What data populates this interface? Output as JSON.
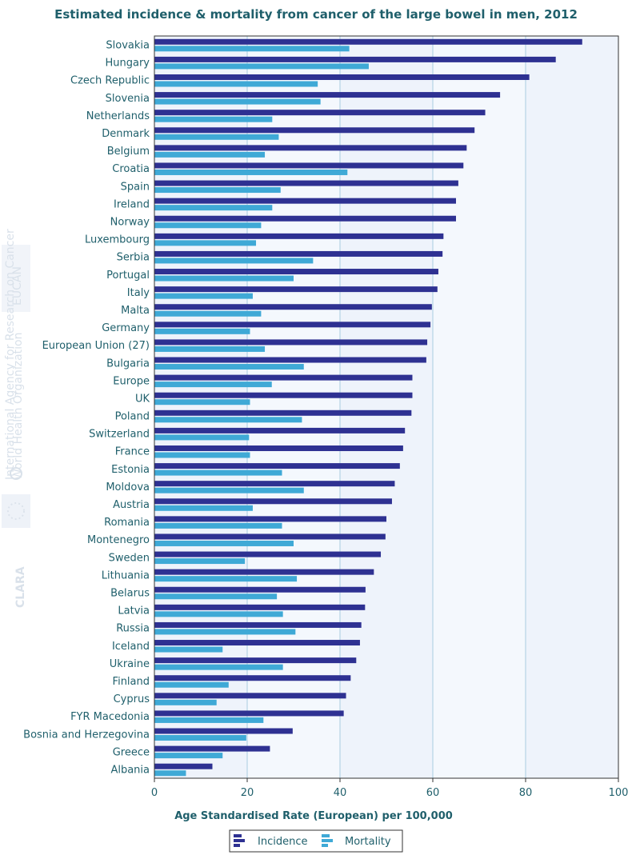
{
  "chart_data": {
    "type": "bar",
    "orientation": "horizontal",
    "title": "Estimated incidence & mortality from cancer of the large bowel in men, 2012",
    "xlabel": "Age Standardised Rate (European) per 100,000",
    "ylabel": "",
    "xlim": [
      0,
      100
    ],
    "xticks": [
      0,
      20,
      40,
      60,
      80,
      100
    ],
    "grid": true,
    "legend_position": "bottom-center",
    "categories": [
      "Slovakia",
      "Hungary",
      "Czech Republic",
      "Slovenia",
      "Netherlands",
      "Denmark",
      "Belgium",
      "Croatia",
      "Spain",
      "Ireland",
      "Norway",
      "Luxembourg",
      "Serbia",
      "Portugal",
      "Italy",
      "Malta",
      "Germany",
      "European Union (27)",
      "Bulgaria",
      "Europe",
      "UK",
      "Poland",
      "Switzerland",
      "France",
      "Estonia",
      "Moldova",
      "Austria",
      "Romania",
      "Montenegro",
      "Sweden",
      "Lithuania",
      "Belarus",
      "Latvia",
      "Russia",
      "Iceland",
      "Ukraine",
      "Finland",
      "Cyprus",
      "FYR Macedonia",
      "Bosnia and Herzegovina",
      "Greece",
      "Albania"
    ],
    "series": [
      {
        "name": "Incidence",
        "color": "#2e3192",
        "values": [
          92.2,
          86.5,
          80.8,
          74.5,
          71.3,
          69.0,
          67.3,
          66.6,
          65.5,
          65.0,
          65.0,
          62.3,
          62.1,
          61.2,
          61.0,
          59.8,
          59.5,
          58.8,
          58.6,
          55.6,
          55.6,
          55.4,
          54.0,
          53.6,
          52.9,
          51.8,
          51.2,
          50.0,
          49.8,
          48.8,
          47.3,
          45.5,
          45.4,
          44.6,
          44.3,
          43.5,
          42.3,
          41.3,
          40.8,
          29.8,
          24.9,
          12.5
        ]
      },
      {
        "name": "Mortality",
        "color": "#3fa9d6",
        "values": [
          42.0,
          46.2,
          35.2,
          35.8,
          25.4,
          26.8,
          23.8,
          41.6,
          27.2,
          25.4,
          23.0,
          21.9,
          34.2,
          30.0,
          21.2,
          23.0,
          20.6,
          23.8,
          32.2,
          25.3,
          20.6,
          31.8,
          20.4,
          20.6,
          27.5,
          32.2,
          21.2,
          27.5,
          30.0,
          19.5,
          30.7,
          26.4,
          27.7,
          30.4,
          14.7,
          27.7,
          16.0,
          13.4,
          23.5,
          19.8,
          14.7,
          6.8
        ]
      }
    ]
  },
  "colors": {
    "title": "#1f5f6b",
    "text": "#1f5f6b",
    "plot_background": "#eef3fb",
    "plot_background_alt": "#f4f8fd",
    "gridline": "#a9cde0",
    "axis": "#333333"
  },
  "watermark": {
    "texts": [
      "EUCAN",
      "CLARA",
      "International Agency for Research on Cancer",
      "World Health Organization"
    ],
    "icons": [
      "who-emblem-icon",
      "eu-flag-icon"
    ]
  }
}
